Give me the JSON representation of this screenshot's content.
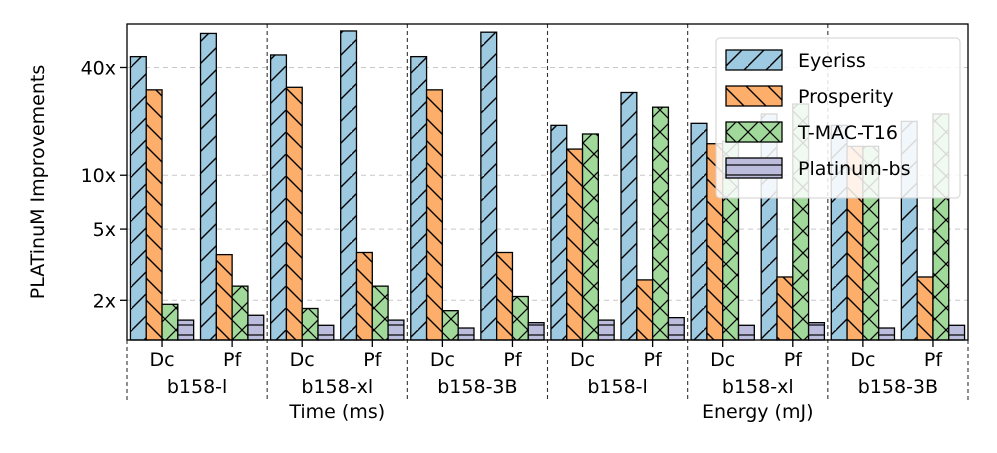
{
  "chart_data": {
    "type": "bar",
    "ylabel": "PLATinuM Improvements",
    "yscale": "log",
    "ylim": [
      1.2,
      70
    ],
    "yticks": [
      {
        "value": 2,
        "label": "2x"
      },
      {
        "value": 5,
        "label": "5x"
      },
      {
        "value": 10,
        "label": "10x"
      },
      {
        "value": 40,
        "label": "40x"
      }
    ],
    "grid": "horizontal-dashed",
    "legend_position": "top-right",
    "metrics": [
      {
        "label": "Time (ms)",
        "models": [
          "b158-l",
          "b158-xl",
          "b158-3B"
        ]
      },
      {
        "label": "Energy (mJ)",
        "models": [
          "b158-l",
          "b158-xl",
          "b158-3B"
        ]
      }
    ],
    "sub_categories": [
      "Dc",
      "Pf"
    ],
    "categories": [
      "Time b158-l Dc",
      "Time b158-l Pf",
      "Time b158-xl Dc",
      "Time b158-xl Pf",
      "Time b158-3B Dc",
      "Time b158-3B Pf",
      "Energy b158-l Dc",
      "Energy b158-l Pf",
      "Energy b158-xl Dc",
      "Energy b158-xl Pf",
      "Energy b158-3B Dc",
      "Energy b158-3B Pf"
    ],
    "series": [
      {
        "name": "Eyeriss",
        "color": "#9ecae1",
        "hatch": "/",
        "values": [
          46,
          62,
          47,
          64,
          46,
          63,
          19,
          29,
          19.5,
          22,
          19,
          20
        ]
      },
      {
        "name": "Prosperity",
        "color": "#fdae6b",
        "hatch": "\\",
        "values": [
          30,
          3.6,
          31,
          3.7,
          30,
          3.7,
          14,
          2.6,
          15,
          2.7,
          14.5,
          2.7
        ]
      },
      {
        "name": "T-MAC-T16",
        "color": "#a1d99b",
        "hatch": "x",
        "values": [
          1.9,
          2.4,
          1.8,
          2.4,
          1.75,
          2.1,
          17,
          24,
          15.5,
          25,
          14.5,
          22
        ]
      },
      {
        "name": "Platinum-bs",
        "color": "#bcbddc",
        "hatch": "-",
        "values": [
          1.55,
          1.65,
          1.45,
          1.55,
          1.4,
          1.5,
          1.55,
          1.6,
          1.45,
          1.5,
          1.4,
          1.45
        ]
      }
    ]
  }
}
